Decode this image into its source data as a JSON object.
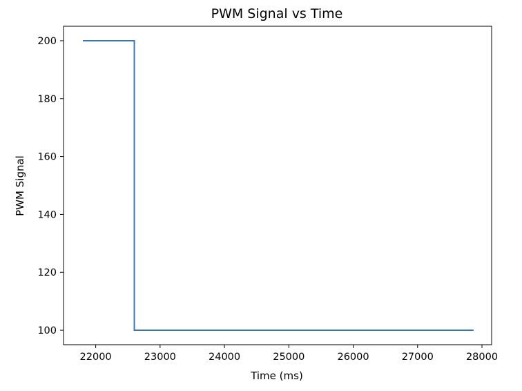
{
  "chart_data": {
    "type": "line",
    "title": "PWM Signal vs Time",
    "xlabel": "Time (ms)",
    "ylabel": "PWM Signal",
    "xlim": [
      21500,
      28150
    ],
    "ylim": [
      95,
      205
    ],
    "xticks": [
      22000,
      23000,
      24000,
      25000,
      26000,
      27000,
      28000
    ],
    "yticks": [
      100,
      120,
      140,
      160,
      180,
      200
    ],
    "grid": false,
    "series": [
      {
        "color": "#3b75af",
        "x": [
          21800,
          22600,
          22600,
          27870
        ],
        "y": [
          200,
          200,
          100,
          100
        ]
      }
    ]
  }
}
